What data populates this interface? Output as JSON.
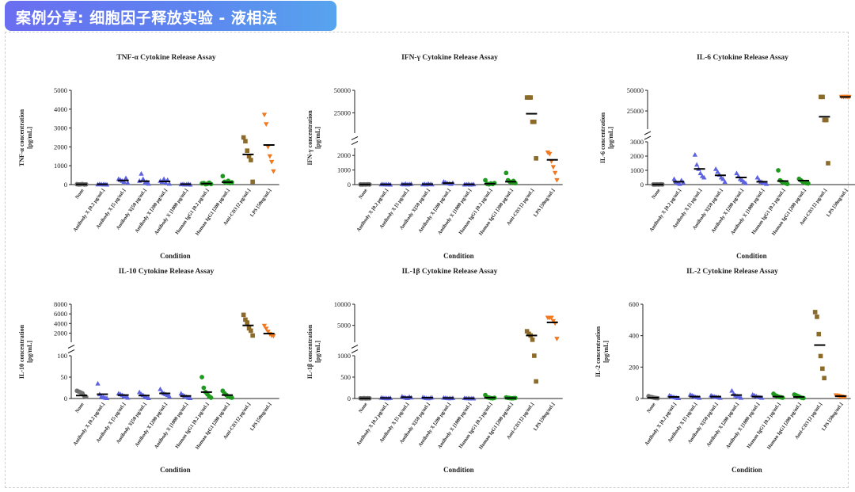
{
  "header": {
    "title": "案例分享: 细胞因子释放实验 - 液相法"
  },
  "colors": {
    "banner_start": "#6a6ef0",
    "banner_end": "#57a4ee",
    "none": "#707070",
    "antibody": "#5d63e0",
    "human_igg1": "#1f9a1f",
    "anti_cd3": "#8c6b2a",
    "lps": "#f07820"
  },
  "chart_data": [
    {
      "type": "scatter",
      "title": "TNF-α Cytokine Release Assay",
      "xlabel": "Condition",
      "ylabel": "TNF-α concentration [pg/mL]",
      "ylim": [
        0,
        5000
      ],
      "yticks": [
        0,
        1000,
        2000,
        3000,
        4000,
        5000
      ],
      "categories": [
        "None",
        "Antibody X [0.2 μg/mL]",
        "Antibody X [5 μg/mL]",
        "Antibody X[50 μg/mL]",
        "Antibody X [200 μg/mL]",
        "Antibody X [1000 μg/mL]",
        "Human IgG1 [0.2 μg/mL]",
        "Human IgG1 [200 μg/mL]",
        "Anti-CD3 [2 μg/mL]",
        "LPS [50ng/mL]"
      ],
      "series": [
        {
          "name": "None",
          "values": [
            20,
            10,
            15,
            25,
            5,
            12
          ]
        },
        {
          "name": "Antibody X [0.2 μg/mL]",
          "values": [
            15,
            30,
            20,
            10,
            25,
            5
          ]
        },
        {
          "name": "Antibody X [5 μg/mL]",
          "values": [
            300,
            250,
            200,
            150,
            350,
            100
          ]
        },
        {
          "name": "Antibody X[50 μg/mL]",
          "values": [
            200,
            580,
            300,
            100,
            150,
            50
          ]
        },
        {
          "name": "Antibody X [200 μg/mL]",
          "values": [
            200,
            150,
            300,
            100,
            250,
            50
          ]
        },
        {
          "name": "Antibody X [1000 μg/mL]",
          "values": [
            20,
            30,
            10,
            15,
            40,
            5
          ]
        },
        {
          "name": "Human IgG1 [0.2 μg/mL]",
          "values": [
            60,
            80,
            20,
            40,
            100,
            30
          ]
        },
        {
          "name": "Human IgG1 [200 μg/mL]",
          "values": [
            450,
            150,
            100,
            200,
            80,
            120
          ]
        },
        {
          "name": "Anti-CD3 [2 μg/mL]",
          "values": [
            2500,
            2300,
            1800,
            1500,
            1300,
            150
          ]
        },
        {
          "name": "LPS [50ng/mL]",
          "values": [
            3700,
            3200,
            2000,
            1500,
            1200,
            700
          ]
        }
      ],
      "medians": [
        15,
        18,
        220,
        180,
        170,
        20,
        50,
        130,
        1600,
        2100
      ]
    },
    {
      "type": "scatter",
      "title": "IFN-γ Cytokine Release Assay",
      "xlabel": "Condition",
      "ylabel": "IFN-γ concentration [pg/mL]",
      "axis_break": true,
      "ylim_lower": [
        0,
        2500
      ],
      "yticks_lower": [
        0,
        1000,
        2000
      ],
      "ylim_upper": [
        2500,
        50000
      ],
      "yticks_upper": [
        25000,
        50000
      ],
      "categories": [
        "None",
        "Antibody X [0.2 μg/mL]",
        "Antibody X [5 μg/mL]",
        "Antibody X[50 μg/mL]",
        "Antibody X [200 μg/mL]",
        "Antibody X [1000 μg/mL]",
        "Human IgG1 [0.2 μg/mL]",
        "Human IgG1 [200 μg/mL]",
        "Anti-CD3 [2 μg/mL]",
        "LPS [50ng/mL]"
      ],
      "series": [
        {
          "name": "None",
          "values": [
            10,
            5,
            15,
            8,
            20,
            12
          ]
        },
        {
          "name": "Antibody X [0.2 μg/mL]",
          "values": [
            15,
            30,
            20,
            10,
            25,
            5
          ]
        },
        {
          "name": "Antibody X [5 μg/mL]",
          "values": [
            40,
            20,
            60,
            10,
            30,
            50
          ]
        },
        {
          "name": "Antibody X[50 μg/mL]",
          "values": [
            20,
            40,
            10,
            60,
            30,
            15
          ]
        },
        {
          "name": "Antibody X [200 μg/mL]",
          "values": [
            200,
            150,
            100,
            80,
            50,
            120
          ]
        },
        {
          "name": "Antibody X [1000 μg/mL]",
          "values": [
            10,
            20,
            30,
            5,
            15,
            25
          ]
        },
        {
          "name": "Human IgG1 [0.2 μg/mL]",
          "values": [
            300,
            50,
            20,
            80,
            40,
            100
          ]
        },
        {
          "name": "Human IgG1 [200 μg/mL]",
          "values": [
            800,
            300,
            200,
            150,
            250,
            100
          ]
        },
        {
          "name": "Anti-CD3 [2 μg/mL]",
          "values": [
            42000,
            42000,
            42000,
            15000,
            15000,
            1800
          ]
        },
        {
          "name": "LPS [50ng/mL]",
          "values": [
            2200,
            2100,
            1600,
            1200,
            800,
            300
          ]
        }
      ],
      "medians": [
        10,
        15,
        25,
        25,
        100,
        15,
        60,
        200,
        24000,
        1700
      ]
    },
    {
      "type": "scatter",
      "title": "IL-6 Cytokine Release Assay",
      "xlabel": "Condition",
      "ylabel": "IL-6 concentration [pg/mL]",
      "axis_break": true,
      "ylim_lower": [
        0,
        3000
      ],
      "yticks_lower": [
        0,
        1000,
        2000,
        3000
      ],
      "ylim_upper": [
        3000,
        50000
      ],
      "yticks_upper": [
        25000,
        50000
      ],
      "categories": [
        "None",
        "Antibody X [0.2 μg/mL]",
        "Antibody X [5 μg/mL]",
        "Antibody X[50 μg/mL]",
        "Antibody X [200 μg/mL]",
        "Antibody X [1000 μg/mL]",
        "Human IgG1 [0.2 μg/mL]",
        "Human IgG1 [200 μg/mL]",
        "Anti-CD3 [2 μg/mL]",
        "LPS [50ng/mL]"
      ],
      "series": [
        {
          "name": "None",
          "values": [
            10,
            5,
            15,
            8,
            20,
            12
          ]
        },
        {
          "name": "Antibody X [0.2 μg/mL]",
          "values": [
            400,
            200,
            100,
            50,
            300,
            150
          ]
        },
        {
          "name": "Antibody X [5 μg/mL]",
          "values": [
            2100,
            1400,
            1100,
            800,
            600,
            500
          ]
        },
        {
          "name": "Antibody X[50 μg/mL]",
          "values": [
            1100,
            900,
            700,
            500,
            400,
            200
          ]
        },
        {
          "name": "Antibody X [200 μg/mL]",
          "values": [
            800,
            600,
            400,
            300,
            200,
            100
          ]
        },
        {
          "name": "Antibody X [1000 μg/mL]",
          "values": [
            500,
            300,
            200,
            150,
            100,
            50
          ]
        },
        {
          "name": "Human IgG1 [0.2 μg/mL]",
          "values": [
            1000,
            300,
            200,
            150,
            100,
            50
          ]
        },
        {
          "name": "Human IgG1 [200 μg/mL]",
          "values": [
            400,
            300,
            200,
            150,
            100,
            80
          ]
        },
        {
          "name": "Anti-CD3 [2 μg/mL]",
          "values": [
            42000,
            42000,
            14000,
            14000,
            1500
          ]
        },
        {
          "name": "LPS [50ng/mL]",
          "values": [
            42000,
            42000,
            42000,
            42000,
            42000
          ]
        }
      ],
      "medians": [
        10,
        200,
        1100,
        650,
        500,
        200,
        250,
        280,
        18000,
        42000
      ]
    },
    {
      "type": "scatter",
      "title": "IL-10 Cytokine Release Assay",
      "xlabel": "Condition",
      "ylabel": "IL-10 concentration [pg/mL]",
      "axis_break": true,
      "ylim_lower": [
        0,
        100
      ],
      "yticks_lower": [
        0,
        50,
        100
      ],
      "ylim_upper": [
        100,
        8000
      ],
      "yticks_upper": [
        2000,
        4000,
        6000,
        8000
      ],
      "categories": [
        "None",
        "Antibody X [0.2 μg/mL]",
        "Antibody X [5 μg/mL]",
        "Antibody X[50 μg/mL]",
        "Antibody X [200 μg/mL]",
        "Antibody X [1000 μg/mL]",
        "Human IgG1 [0.2 μg/mL]",
        "Human IgG1 [200 μg/mL]",
        "Anti-CD3 [2 μg/mL]",
        "LPS [50ng/mL]"
      ],
      "series": [
        {
          "name": "None",
          "values": [
            18,
            16,
            14,
            12,
            6,
            4
          ]
        },
        {
          "name": "Antibody X [0.2 μg/mL]",
          "values": [
            35,
            10,
            5,
            3,
            2,
            1
          ]
        },
        {
          "name": "Antibody X [5 μg/mL]",
          "values": [
            12,
            10,
            8,
            6,
            4,
            2
          ]
        },
        {
          "name": "Antibody X[50 μg/mL]",
          "values": [
            15,
            10,
            8,
            5,
            3,
            1
          ]
        },
        {
          "name": "Antibody X [200 μg/mL]",
          "values": [
            22,
            15,
            12,
            10,
            8,
            5
          ]
        },
        {
          "name": "Antibody X [1000 μg/mL]",
          "values": [
            12,
            8,
            6,
            4,
            2,
            1
          ]
        },
        {
          "name": "Human IgG1 [0.2 μg/mL]",
          "values": [
            50,
            25,
            15,
            10,
            5,
            2
          ]
        },
        {
          "name": "Human IgG1 [200 μg/mL]",
          "values": [
            18,
            12,
            8,
            5,
            3,
            2
          ]
        },
        {
          "name": "Anti-CD3 [2 μg/mL]",
          "values": [
            5800,
            4800,
            4200,
            3000,
            2500,
            1500
          ]
        },
        {
          "name": "LPS [50ng/mL]",
          "values": [
            3500,
            2900,
            2300,
            1800,
            1500,
            1400
          ]
        }
      ],
      "medians": [
        7,
        10,
        8,
        7,
        12,
        6,
        15,
        8,
        3600,
        1900
      ]
    },
    {
      "type": "scatter",
      "title": "IL-1β Cytokine Release Assay",
      "xlabel": "Condition",
      "ylabel": "IL-1β concentration [pg/mL]",
      "axis_break": true,
      "ylim_lower": [
        0,
        1000
      ],
      "yticks_lower": [
        0,
        500,
        1000
      ],
      "ylim_upper": [
        1000,
        10000
      ],
      "yticks_upper": [
        5000,
        10000
      ],
      "categories": [
        "None",
        "Antibody X [0.2 μg/mL]",
        "Antibody X [5 μg/mL]",
        "Antibody X[50 μg/mL]",
        "Antibody X [200 μg/mL]",
        "Antibody X [1000 μg/mL]",
        "Human IgG1 [0.2 μg/mL]",
        "Human IgG1 [200 μg/mL]",
        "Anti-CD3 [2 μg/mL]",
        "LPS [50ng/mL]"
      ],
      "series": [
        {
          "name": "None",
          "values": [
            5,
            3,
            8,
            2,
            6,
            4
          ]
        },
        {
          "name": "Antibody X [0.2 μg/mL]",
          "values": [
            20,
            15,
            10,
            5,
            8,
            12
          ]
        },
        {
          "name": "Antibody X [5 μg/mL]",
          "values": [
            50,
            30,
            20,
            10,
            40,
            25
          ]
        },
        {
          "name": "Antibody X[50 μg/mL]",
          "values": [
            30,
            20,
            10,
            5,
            15,
            25
          ]
        },
        {
          "name": "Antibody X [200 μg/mL]",
          "values": [
            20,
            15,
            10,
            5,
            8,
            12
          ]
        },
        {
          "name": "Antibody X [1000 μg/mL]",
          "values": [
            10,
            8,
            5,
            3,
            6,
            4
          ]
        },
        {
          "name": "Human IgG1 [0.2 μg/mL]",
          "values": [
            80,
            30,
            20,
            10,
            5,
            15
          ]
        },
        {
          "name": "Human IgG1 [200 μg/mL]",
          "values": [
            25,
            15,
            10,
            5,
            8,
            12
          ]
        },
        {
          "name": "Anti-CD3 [2 μg/mL]",
          "values": [
            3600,
            3000,
            2600,
            1600,
            1000,
            400
          ]
        },
        {
          "name": "LPS [50ng/mL]",
          "values": [
            6800,
            6800,
            6800,
            6000,
            5500,
            1800
          ]
        }
      ],
      "medians": [
        4,
        12,
        30,
        18,
        12,
        5,
        20,
        10,
        2600,
        5700
      ]
    },
    {
      "type": "scatter",
      "title": "IL-2 Cytokine Release Assay",
      "xlabel": "Condition",
      "ylabel": "IL-2 concentration [pg/mL]",
      "ylim": [
        0,
        600
      ],
      "yticks": [
        0,
        200,
        400,
        600
      ],
      "categories": [
        "None",
        "Antibody X [0.2 μg/mL]",
        "Antibody X [5 μg/mL]",
        "Antibody X[50 μg/mL]",
        "Antibody X [200 μg/mL]",
        "Antibody X [1000 μg/mL]",
        "Human IgG1 [0.2 μg/mL]",
        "Human IgG1 [200 μg/mL]",
        "Anti-CD3 [2 μg/mL]",
        "LPS [50ng/mL]"
      ],
      "series": [
        {
          "name": "None",
          "values": [
            15,
            10,
            8,
            5,
            3,
            2
          ]
        },
        {
          "name": "Antibody X [0.2 μg/mL]",
          "values": [
            20,
            15,
            10,
            8,
            5,
            3
          ]
        },
        {
          "name": "Antibody X [5 μg/mL]",
          "values": [
            25,
            20,
            15,
            10,
            8,
            5
          ]
        },
        {
          "name": "Antibody X[50 μg/mL]",
          "values": [
            20,
            15,
            12,
            10,
            8,
            5
          ]
        },
        {
          "name": "Antibody X [200 μg/mL]",
          "values": [
            50,
            30,
            20,
            15,
            10,
            5
          ]
        },
        {
          "name": "Antibody X [1000 μg/mL]",
          "values": [
            25,
            20,
            15,
            10,
            8,
            5
          ]
        },
        {
          "name": "Human IgG1 [0.2 μg/mL]",
          "values": [
            30,
            20,
            15,
            10,
            8,
            5
          ]
        },
        {
          "name": "Human IgG1 [200 μg/mL]",
          "values": [
            25,
            20,
            15,
            10,
            5,
            3
          ]
        },
        {
          "name": "Anti-CD3 [2 μg/mL]",
          "values": [
            550,
            520,
            410,
            270,
            190,
            130
          ]
        },
        {
          "name": "LPS [50ng/mL]",
          "values": [
            20,
            18,
            15,
            12,
            10,
            8
          ]
        }
      ],
      "medians": [
        5,
        10,
        12,
        12,
        22,
        12,
        12,
        10,
        340,
        15
      ]
    }
  ]
}
